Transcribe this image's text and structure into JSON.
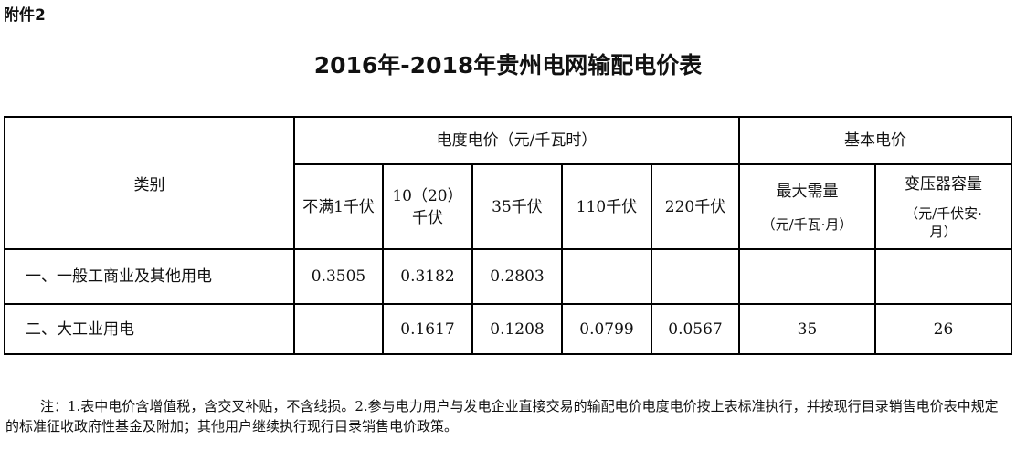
{
  "attachment_label": "附件2",
  "title": "2016年-2018年贵州电网输配电价表",
  "table": {
    "category_header": "类别",
    "energy_price_header": "电度电价（元/千瓦时）",
    "basic_price_header": "基本电价",
    "voltage_columns": [
      "不满1千伏",
      "10（20）千伏",
      "35千伏",
      "110千伏",
      "220千伏"
    ],
    "basic_columns": [
      {
        "label": "最大需量",
        "unit": "（元/千瓦·月）"
      },
      {
        "label": "变压器容量",
        "unit": "（元/千伏安·月）"
      }
    ],
    "rows": [
      {
        "category": "一、一般工商业及其他用电",
        "values": [
          "0.3505",
          "0.3182",
          "0.2803",
          "",
          "",
          "",
          ""
        ]
      },
      {
        "category": "二、大工业用电",
        "values": [
          "",
          "0.1617",
          "0.1208",
          "0.0799",
          "0.0567",
          "35",
          "26"
        ]
      }
    ]
  },
  "note": "注：1.表中电价含增值税，含交叉补贴，不含线损。2.参与电力用户与发电企业直接交易的输配电价电度电价按上表标准执行，并按现行目录销售电价表中规定的标准征收政府性基金及附加；其他用户继续执行现行目录销售电价政策。"
}
